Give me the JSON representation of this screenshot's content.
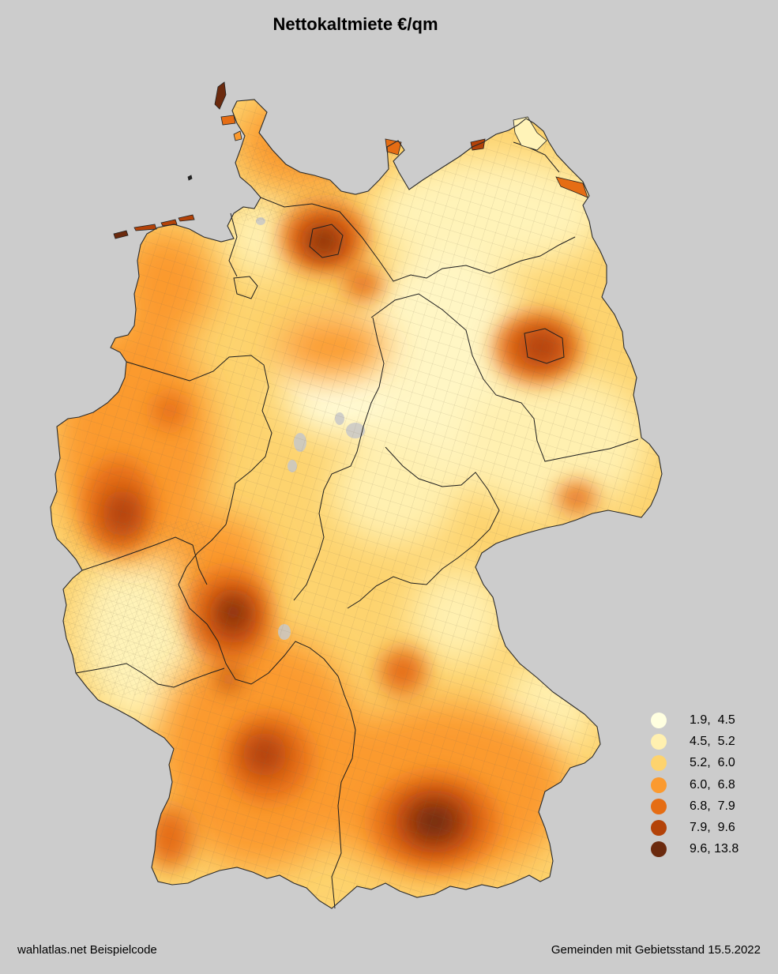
{
  "title": "Nettokaltmiete €/qm",
  "legend": {
    "classes": [
      {
        "label": "1.9,  4.5",
        "color": "#ffffe0"
      },
      {
        "label": "4.5,  5.2",
        "color": "#fff0b0"
      },
      {
        "label": "5.2,  6.0",
        "color": "#fdd36e"
      },
      {
        "label": "6.0,  6.8",
        "color": "#fb9a2f"
      },
      {
        "label": "6.8,  7.9",
        "color": "#e56d14"
      },
      {
        "label": "7.9,  9.6",
        "color": "#b34208"
      },
      {
        "label": "9.6, 13.8",
        "color": "#6b2a0e"
      }
    ]
  },
  "colors": {
    "background": "#cccccc",
    "border": "#222222",
    "nodata": "#c8c8c8"
  },
  "footer": {
    "left": "wahlatlas.net Beispielcode",
    "right": "Gemeinden mit Gebietsstand 15.5.2022"
  }
}
